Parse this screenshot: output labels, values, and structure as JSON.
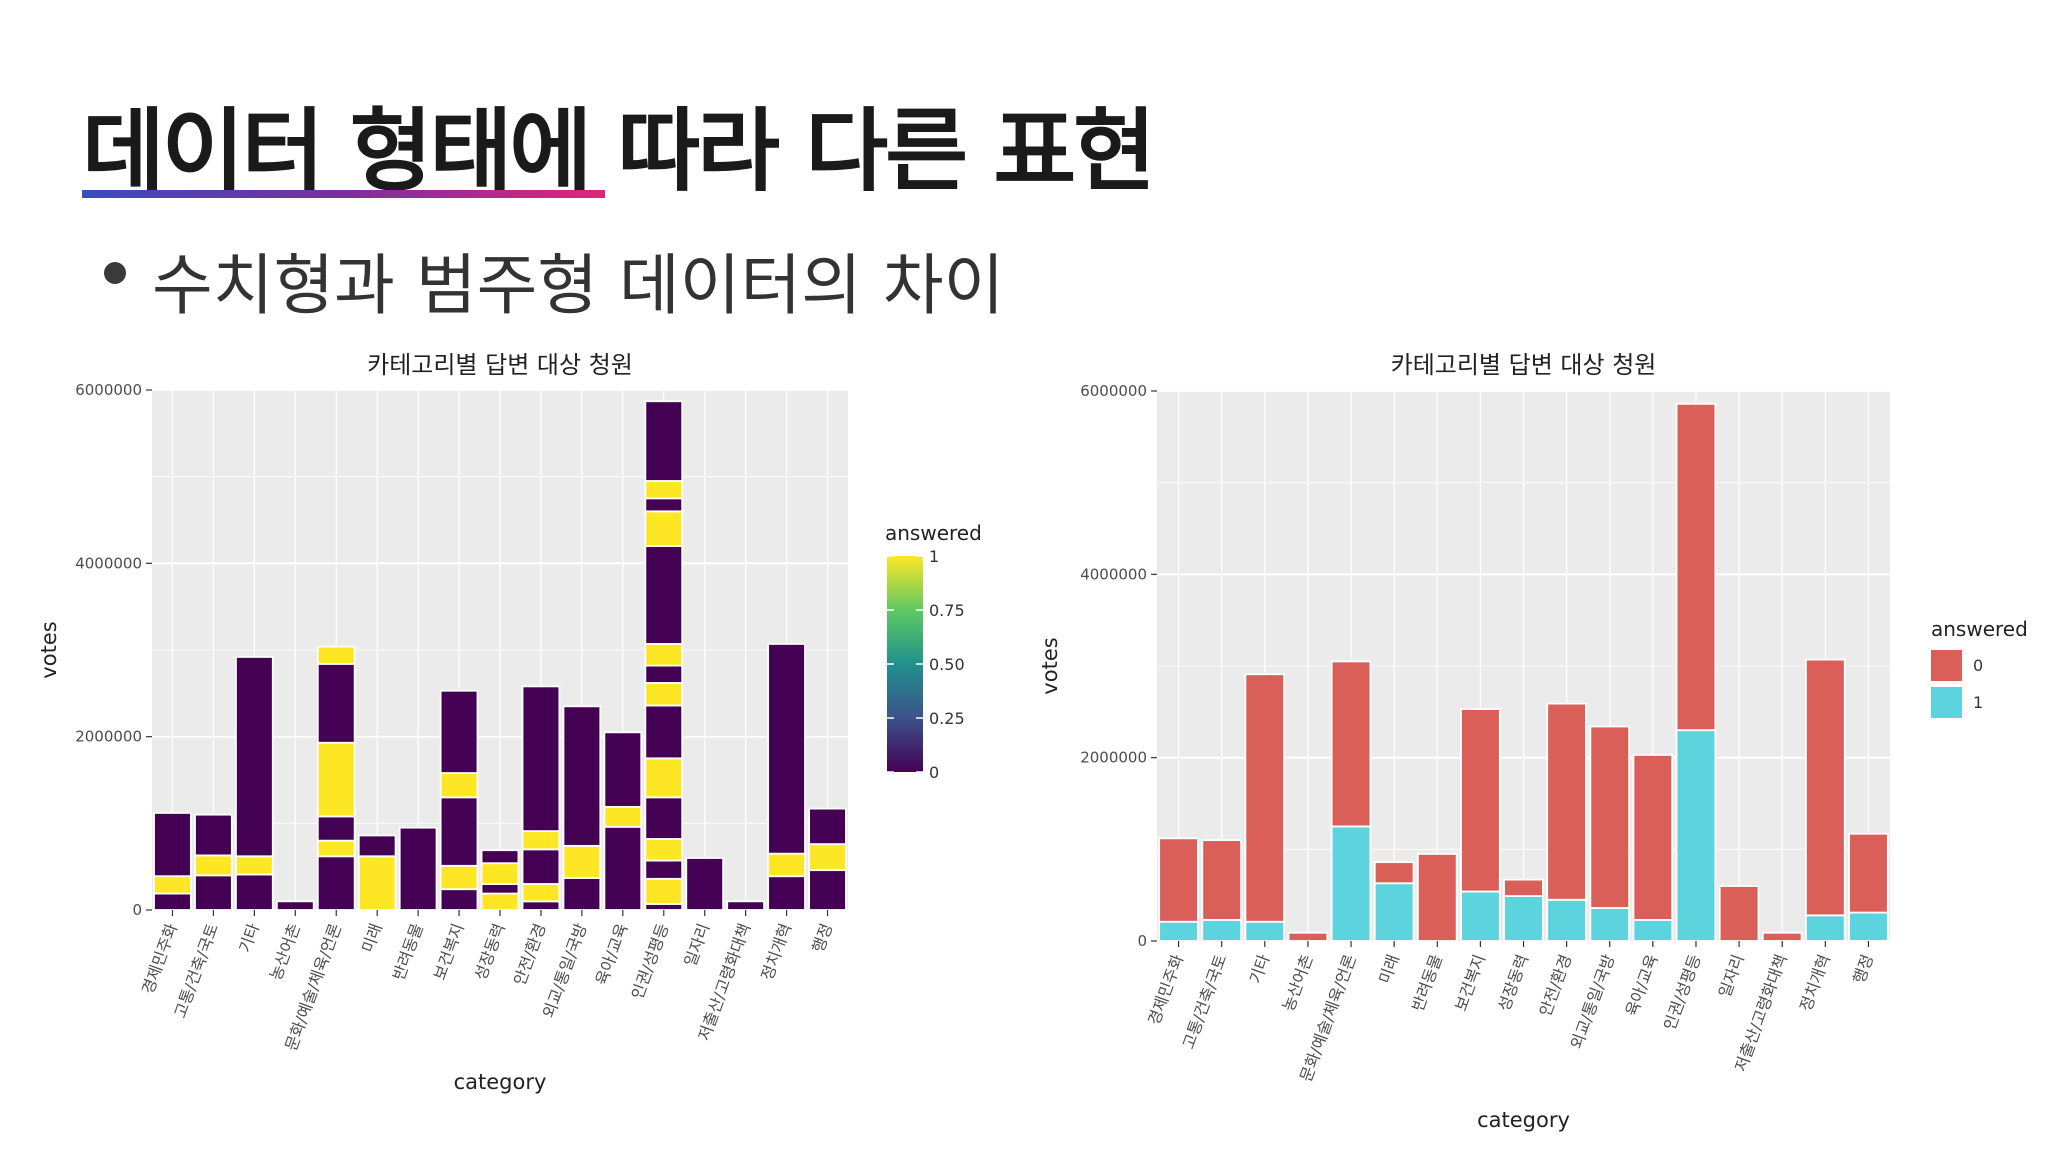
{
  "slide": {
    "title": "데이터 형태에 따라 다른 표현",
    "bullet": "수치형과 범주형 데이터의 차이"
  },
  "chart_data": [
    {
      "type": "bar",
      "stacked": true,
      "title": "카테고리별 답변 대상 청원",
      "xlabel": "category",
      "ylabel": "votes",
      "ylim": [
        0,
        6000000
      ],
      "yticks": [
        "0",
        "2000000",
        "4000000",
        "6000000"
      ],
      "categories": [
        "경제민주화",
        "고통/건축/국토",
        "기타",
        "농산어촌",
        "문화/예술/체육/언론",
        "미래",
        "반려동물",
        "보건복지",
        "성장동력",
        "안전/환경",
        "외교/통일/국방",
        "육아/교육",
        "인권/성평등",
        "일자리",
        "저출산/고령화대책",
        "정치개혁",
        "행정"
      ],
      "bar_totals": [
        1120000,
        1100000,
        2920000,
        100000,
        3040000,
        860000,
        950000,
        2530000,
        690000,
        2580000,
        2350000,
        2050000,
        5870000,
        600000,
        100000,
        3070000,
        1170000
      ],
      "segments": [
        [
          [
            0,
            190000,
            0
          ],
          [
            190000,
            390000,
            1
          ],
          [
            390000,
            1120000,
            0
          ]
        ],
        [
          [
            0,
            400000,
            0
          ],
          [
            400000,
            630000,
            1
          ],
          [
            630000,
            1100000,
            0
          ]
        ],
        [
          [
            0,
            410000,
            0
          ],
          [
            410000,
            620000,
            1
          ],
          [
            620000,
            2920000,
            0
          ]
        ],
        [
          [
            0,
            100000,
            0
          ]
        ],
        [
          [
            0,
            620000,
            0
          ],
          [
            620000,
            800000,
            1
          ],
          [
            800000,
            1080000,
            0
          ],
          [
            1080000,
            1930000,
            1
          ],
          [
            1930000,
            2840000,
            0
          ],
          [
            2840000,
            3040000,
            1
          ]
        ],
        [
          [
            0,
            620000,
            1
          ],
          [
            620000,
            860000,
            0
          ]
        ],
        [
          [
            0,
            950000,
            0
          ]
        ],
        [
          [
            0,
            240000,
            0
          ],
          [
            240000,
            510000,
            1
          ],
          [
            510000,
            1300000,
            0
          ],
          [
            1300000,
            1580000,
            1
          ],
          [
            1580000,
            2530000,
            0
          ]
        ],
        [
          [
            0,
            190000,
            1
          ],
          [
            190000,
            300000,
            0
          ],
          [
            300000,
            540000,
            1
          ],
          [
            540000,
            690000,
            0
          ]
        ],
        [
          [
            0,
            100000,
            0
          ],
          [
            100000,
            300000,
            1
          ],
          [
            300000,
            700000,
            0
          ],
          [
            700000,
            910000,
            1
          ],
          [
            910000,
            2580000,
            0
          ]
        ],
        [
          [
            0,
            370000,
            0
          ],
          [
            370000,
            740000,
            1
          ],
          [
            740000,
            2350000,
            0
          ]
        ],
        [
          [
            0,
            960000,
            0
          ],
          [
            960000,
            1190000,
            1
          ],
          [
            1190000,
            2050000,
            0
          ]
        ],
        [
          [
            0,
            70000,
            0
          ],
          [
            70000,
            360000,
            1
          ],
          [
            360000,
            570000,
            0
          ],
          [
            570000,
            820000,
            1
          ],
          [
            820000,
            1300000,
            0
          ],
          [
            1300000,
            1750000,
            1
          ],
          [
            1750000,
            2360000,
            0
          ],
          [
            2360000,
            2620000,
            1
          ],
          [
            2620000,
            2820000,
            0
          ],
          [
            2820000,
            3070000,
            1
          ],
          [
            3070000,
            4200000,
            0
          ],
          [
            4200000,
            4600000,
            1
          ],
          [
            4600000,
            4750000,
            0
          ],
          [
            4750000,
            4950000,
            1
          ],
          [
            4950000,
            5870000,
            0
          ]
        ],
        [
          [
            0,
            600000,
            0
          ]
        ],
        [
          [
            0,
            100000,
            0
          ]
        ],
        [
          [
            0,
            390000,
            0
          ],
          [
            390000,
            650000,
            1
          ],
          [
            650000,
            3070000,
            0
          ]
        ],
        [
          [
            0,
            460000,
            0
          ],
          [
            460000,
            760000,
            1
          ],
          [
            760000,
            1170000,
            0
          ]
        ]
      ],
      "legend": {
        "title": "answered",
        "ticks": [
          "0",
          "0.25",
          "0.50",
          "0.75",
          "1"
        ],
        "position": "right"
      },
      "colors": {
        "answered_0": "#440154",
        "answered_1": "#fde725"
      },
      "grid": true
    },
    {
      "type": "bar",
      "stacked": true,
      "title": "카테고리별 답변 대상 청원",
      "xlabel": "category",
      "ylabel": "votes",
      "ylim": [
        0,
        6000000
      ],
      "yticks": [
        "0",
        "2000000",
        "4000000",
        "6000000"
      ],
      "categories": [
        "경제민주화",
        "고통/건축/국토",
        "기타",
        "농산어촌",
        "문화/예술/체육/언론",
        "미래",
        "반려동물",
        "보건복지",
        "성장동력",
        "안전/환경",
        "외교/통일/국방",
        "육아/교육",
        "인권/성평등",
        "일자리",
        "저출산/고령화대책",
        "정치개혁",
        "행정"
      ],
      "series": [
        {
          "name": "1",
          "values": [
            210000,
            230000,
            210000,
            0,
            1250000,
            630000,
            0,
            540000,
            490000,
            450000,
            360000,
            230000,
            2300000,
            0,
            0,
            280000,
            310000
          ]
        },
        {
          "name": "0",
          "values": [
            910000,
            870000,
            2700000,
            90000,
            1800000,
            230000,
            950000,
            1990000,
            180000,
            2140000,
            1980000,
            1800000,
            3560000,
            600000,
            90000,
            2790000,
            860000
          ]
        }
      ],
      "legend": {
        "title": "answered",
        "entries": [
          "0",
          "1"
        ],
        "position": "right"
      },
      "colors": {
        "answered_0": "#da5f59",
        "answered_1": "#5cd3dd"
      },
      "grid": true
    }
  ]
}
